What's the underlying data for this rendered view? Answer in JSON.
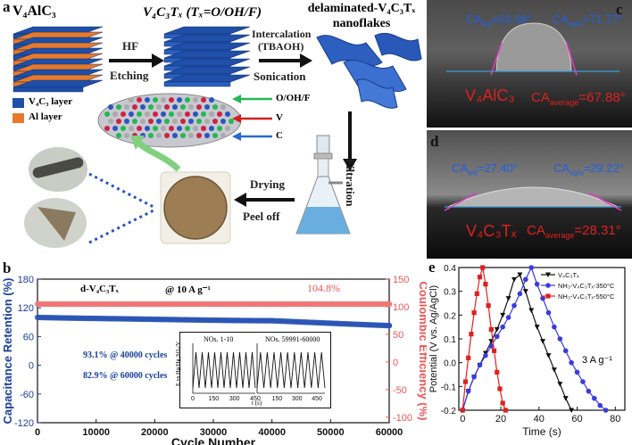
{
  "panel_a": {
    "label": "a",
    "mat1": "V₄AlC₃",
    "mat2": "V₄C₃Tₓ (Tₓ=O/OH/F)",
    "mat3_line1": "delaminated-V₄C₃Tₓ",
    "mat3_line2": "nanoflakes",
    "hf": "HF",
    "etching": "Etching",
    "intercalation": "Intercalation",
    "tbaoh": "(TBAOH)",
    "sonication": "Sonication",
    "legend_v4c3": "V₄C₃ layer",
    "legend_al": "Al layer",
    "label_ooh": "O/OH/F",
    "label_v": "V",
    "label_c": "C",
    "filtration": "Filtration",
    "drying": "Drying",
    "peel_off": "Peel off",
    "colors": {
      "v4c3_layer": "#1f4fa8",
      "al_layer": "#e8792a"
    }
  },
  "panel_b": {
    "label": "b",
    "sample_label": "d-V₄C₃Tₓ",
    "rate_label": "@ 10 A g⁻¹",
    "ce_label": "104.8%",
    "ret1": "93.1% @ 40000 cycles",
    "ret2": "82.9% @ 60000 cycles",
    "inset_left_title": "NOs. 1-10",
    "inset_right_title": "NOs. 59991-60000",
    "inset_ylabel": "E vs Hg/Hg₂SO₄/V",
    "inset_xlabel": "t (s)",
    "inset_left_ticks": [
      "0",
      "150",
      "300",
      "450"
    ],
    "inset_right_ticks": [
      "150",
      "300",
      "450"
    ]
  },
  "panel_c": {
    "label": "c",
    "ca_left": "CA",
    "ca_left_sub": "left",
    "ca_left_val": "=63.98°",
    "ca_right": "CA",
    "ca_right_sub": "right",
    "ca_right_val": "=71.77°",
    "material": "V₄AlC₃",
    "ca_avg": "CA",
    "ca_avg_sub": "average",
    "ca_avg_val": "=67.88°"
  },
  "panel_d": {
    "label": "d",
    "ca_left": "CA",
    "ca_left_sub": "left",
    "ca_left_val": "=27.40°",
    "ca_right": "CA",
    "ca_right_sub": "right",
    "ca_right_val": "=29.22°",
    "material": "V₄C₃Tₓ",
    "ca_avg": "CA",
    "ca_avg_sub": "average",
    "ca_avg_val": "=28.31°"
  },
  "panel_e": {
    "label": "e",
    "rate": "3 A g⁻¹"
  },
  "chart_data": [
    {
      "type": "scatter",
      "panel": "b",
      "xlabel": "Cycle Number",
      "ylabel": "Capacitance Retention (%)",
      "y2label": "Coulombic Efficiency (%)",
      "xlim": [
        0,
        60000
      ],
      "ylim": [
        -120,
        180
      ],
      "y2lim": [
        -110,
        150
      ],
      "xticks": [
        "0",
        "10000",
        "20000",
        "30000",
        "40000",
        "50000",
        "60000"
      ],
      "yticks": [
        "-120",
        "-60",
        "0",
        "60",
        "120",
        "180"
      ],
      "y2ticks": [
        "-100",
        "-50",
        "0",
        "50",
        "100",
        "150"
      ],
      "series": [
        {
          "axis": "left",
          "color": "#2a55b5",
          "x": [
            0,
            2000,
            4000,
            6000,
            8000,
            10000,
            12000,
            14000,
            16000,
            18000,
            20000,
            22000,
            24000,
            26000,
            28000,
            30000,
            32000,
            34000,
            36000,
            38000,
            40000,
            42000,
            44000,
            46000,
            48000,
            50000,
            52000,
            54000,
            56000,
            58000,
            60000
          ],
          "y": [
            100,
            99.5,
            99,
            98.6,
            98.2,
            97.9,
            97.5,
            97.2,
            96.8,
            96.4,
            96,
            95.7,
            95.3,
            94.9,
            94.5,
            94.2,
            93.9,
            93.6,
            93.4,
            93.2,
            93.1,
            92.1,
            91.0,
            89.9,
            88.9,
            87.8,
            86.8,
            85.8,
            84.8,
            83.8,
            82.9
          ]
        },
        {
          "axis": "right",
          "color": "#f07575",
          "x": [
            0,
            2000,
            4000,
            6000,
            8000,
            10000,
            12000,
            14000,
            16000,
            18000,
            20000,
            22000,
            24000,
            26000,
            28000,
            30000,
            32000,
            34000,
            36000,
            38000,
            40000,
            42000,
            44000,
            46000,
            48000,
            50000,
            52000,
            54000,
            56000,
            58000,
            60000
          ],
          "y": [
            104.8,
            104.8,
            104.8,
            104.8,
            104.8,
            104.8,
            104.8,
            104.8,
            104.8,
            104.8,
            104.8,
            104.8,
            104.8,
            104.8,
            104.8,
            104.8,
            104.8,
            104.8,
            104.8,
            104.8,
            104.8,
            104.8,
            104.8,
            104.8,
            104.8,
            104.8,
            104.8,
            104.8,
            104.8,
            104.8,
            104.8
          ]
        }
      ]
    },
    {
      "type": "line",
      "panel": "e",
      "xlabel": "Time (s)",
      "ylabel": "Potential (V vs. Ag/AgCl)",
      "xlim": [
        -2,
        85
      ],
      "ylim": [
        -0.2,
        0.4
      ],
      "xticks": [
        "0",
        "20",
        "40",
        "60",
        "80"
      ],
      "yticks": [
        "-0.2",
        "-0.1",
        "0.0",
        "0.1",
        "0.2",
        "0.3",
        "0.4"
      ],
      "series": [
        {
          "name": "V₄C₃Tₓ",
          "color": "#111111",
          "marker": "triangle-down",
          "x": [
            0,
            3,
            6,
            9,
            12,
            15,
            18,
            21,
            24,
            27,
            30,
            33,
            36,
            39,
            42,
            45,
            48,
            51,
            54,
            57
          ],
          "y": [
            -0.2,
            -0.12,
            -0.06,
            -0.01,
            0.04,
            0.09,
            0.14,
            0.2,
            0.27,
            0.35,
            0.37,
            0.3,
            0.22,
            0.15,
            0.09,
            0.03,
            -0.03,
            -0.09,
            -0.15,
            -0.2
          ]
        },
        {
          "name": "NH₃-V₄C₃Tₓ-350°C",
          "color": "#3a3ae0",
          "marker": "circle",
          "x": [
            0,
            3,
            6,
            9,
            12,
            15,
            18,
            21,
            24,
            27,
            30,
            33,
            36,
            39,
            42,
            45,
            48,
            51,
            54,
            57,
            60,
            63,
            66,
            69,
            72,
            75
          ],
          "y": [
            -0.2,
            -0.12,
            -0.06,
            -0.01,
            0.03,
            0.07,
            0.11,
            0.15,
            0.19,
            0.24,
            0.29,
            0.35,
            0.4,
            0.33,
            0.27,
            0.21,
            0.15,
            0.1,
            0.05,
            0.0,
            -0.04,
            -0.08,
            -0.12,
            -0.15,
            -0.18,
            -0.2
          ]
        },
        {
          "name": "NH₃-V₄C₃Tₓ-550°C",
          "color": "#e02020",
          "marker": "square",
          "x": [
            0,
            1.5,
            3,
            4.5,
            6,
            7.5,
            9,
            10.5,
            12,
            13.5,
            15,
            16.5,
            18,
            19.5,
            21,
            22.5
          ],
          "y": [
            -0.2,
            -0.08,
            0.02,
            0.12,
            0.21,
            0.29,
            0.36,
            0.4,
            0.33,
            0.24,
            0.14,
            0.05,
            -0.04,
            -0.11,
            -0.17,
            -0.2
          ]
        }
      ]
    }
  ]
}
